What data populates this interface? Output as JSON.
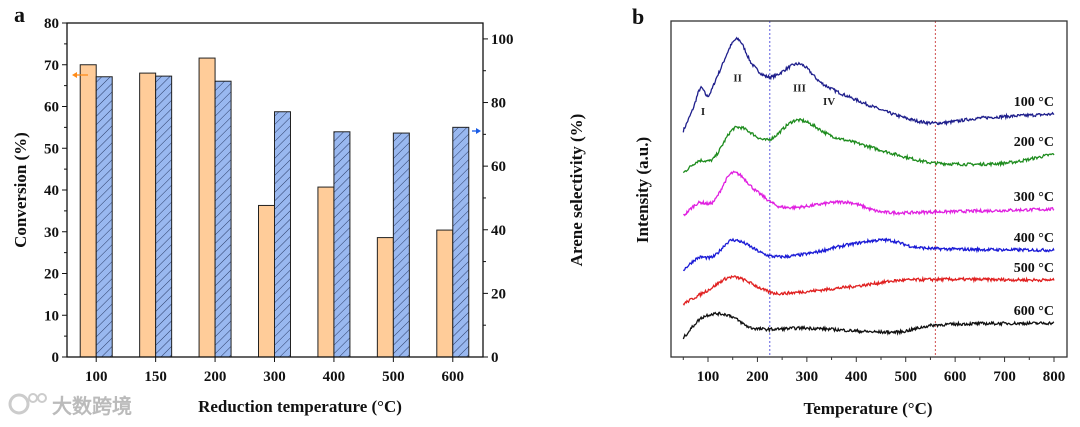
{
  "watermark": "大数跨境",
  "chart_data": [
    {
      "panel": "a",
      "type": "bar",
      "xlabel": "Reduction temperature (°C)",
      "ylabel": "Conversion (%)",
      "y2label": "Arene selectivity (%)",
      "categories": [
        "100",
        "150",
        "200",
        "300",
        "400",
        "500",
        "600"
      ],
      "ylim": [
        0,
        80
      ],
      "y2lim": [
        0,
        105
      ],
      "yticks": [
        0,
        10,
        20,
        30,
        40,
        50,
        60,
        70,
        80
      ],
      "y2ticks": [
        0,
        20,
        40,
        60,
        80,
        100
      ],
      "series": [
        {
          "name": "Conversion",
          "axis": "left",
          "color": "#FFCC99",
          "values": [
            70.0,
            68.0,
            71.6,
            36.3,
            40.7,
            28.6,
            30.4
          ]
        },
        {
          "name": "Arene selectivity",
          "axis": "right",
          "color": "#99B8F0",
          "hatched": true,
          "values": [
            88.1,
            88.3,
            86.7,
            77.1,
            70.8,
            70.4,
            72.2
          ]
        }
      ],
      "arrows": [
        {
          "series": "Conversion",
          "direction": "left",
          "color": "#FF8C1A"
        },
        {
          "series": "Arene selectivity",
          "direction": "right",
          "color": "#1A5CE6"
        }
      ]
    },
    {
      "panel": "b",
      "type": "line",
      "xlabel": "Temperature (°C)",
      "ylabel": "Intensity (a.u.)",
      "xlim": [
        40,
        820
      ],
      "xticks": [
        100,
        200,
        300,
        400,
        500,
        600,
        700,
        800
      ],
      "ylim": [
        0,
        100
      ],
      "vlines": [
        {
          "x": 225,
          "color": "#5B5BE0"
        },
        {
          "x": 560,
          "color": "#D05050"
        }
      ],
      "peak_labels": [
        {
          "text": "I",
          "x": 90,
          "y": 72
        },
        {
          "text": "II",
          "x": 160,
          "y": 82
        },
        {
          "text": "III",
          "x": 285,
          "y": 79
        },
        {
          "text": "IV",
          "x": 345,
          "y": 75
        }
      ],
      "series": [
        {
          "name": "100 °C",
          "color": "#1F1F8C",
          "points": [
            [
              50,
              67.3
            ],
            [
              70,
              74
            ],
            [
              85,
              80
            ],
            [
              100,
              77.7
            ],
            [
              120,
              84
            ],
            [
              158,
              94.6
            ],
            [
              190,
              87
            ],
            [
              225,
              83.3
            ],
            [
              285,
              87.2
            ],
            [
              330,
              81.5
            ],
            [
              400,
              76.5
            ],
            [
              500,
              71.1
            ],
            [
              560,
              69.6
            ],
            [
              650,
              71.1
            ],
            [
              800,
              72.3
            ]
          ]
        },
        {
          "name": "200 °C",
          "color": "#1E8C1E",
          "points": [
            [
              50,
              54.8
            ],
            [
              80,
              58.3
            ],
            [
              110,
              58.9
            ],
            [
              155,
              68.2
            ],
            [
              220,
              64.6
            ],
            [
              280,
              70.5
            ],
            [
              350,
              65.8
            ],
            [
              400,
              63.7
            ],
            [
              500,
              59.5
            ],
            [
              560,
              57.7
            ],
            [
              700,
              57.7
            ],
            [
              800,
              60.4
            ]
          ]
        },
        {
          "name": "300 °C",
          "color": "#E020E0",
          "points": [
            [
              50,
              42
            ],
            [
              80,
              45.8
            ],
            [
              110,
              46.1
            ],
            [
              150,
              54.8
            ],
            [
              200,
              49.1
            ],
            [
              250,
              44.6
            ],
            [
              380,
              46.1
            ],
            [
              450,
              43.2
            ],
            [
              560,
              43.2
            ],
            [
              800,
              44
            ]
          ]
        },
        {
          "name": "400 °C",
          "color": "#1A1AD6",
          "points": [
            [
              50,
              25.9
            ],
            [
              80,
              29.5
            ],
            [
              110,
              29.8
            ],
            [
              150,
              34.8
            ],
            [
              225,
              30.1
            ],
            [
              300,
              30.7
            ],
            [
              380,
              33.3
            ],
            [
              460,
              34.8
            ],
            [
              520,
              32.7
            ],
            [
              600,
              32.1
            ],
            [
              800,
              31.8
            ]
          ]
        },
        {
          "name": "500 °C",
          "color": "#E02020",
          "points": [
            [
              50,
              15.8
            ],
            [
              100,
              19.9
            ],
            [
              150,
              23.8
            ],
            [
              225,
              19.3
            ],
            [
              260,
              19
            ],
            [
              400,
              21.1
            ],
            [
              500,
              22.9
            ],
            [
              800,
              22.9
            ]
          ]
        },
        {
          "name": "600 °C",
          "color": "#111111",
          "points": [
            [
              50,
              5.7
            ],
            [
              90,
              11.9
            ],
            [
              140,
              12.5
            ],
            [
              190,
              8.6
            ],
            [
              300,
              8.6
            ],
            [
              480,
              7.4
            ],
            [
              560,
              9.5
            ],
            [
              800,
              10.1
            ]
          ]
        }
      ]
    }
  ]
}
